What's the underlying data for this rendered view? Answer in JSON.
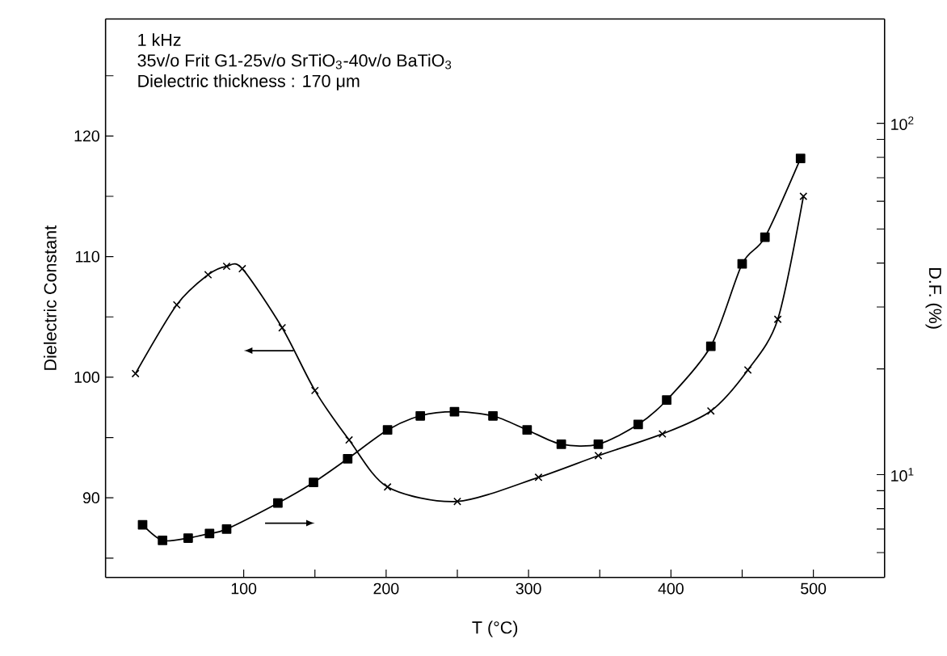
{
  "chart_data": {
    "type": "line",
    "xlabel": "T (°C)",
    "ylabel": "Dielectric Constant",
    "y2label": "D.F. (%)",
    "annotations": [
      "1 kHz",
      "35v/o Frit G1-25v/o SrTiO$_{3}$-40v/o BaTiO$_{3}$",
      "Dielectric thickness : 170 μm"
    ],
    "xlim": [
      3,
      550
    ],
    "xticks": [
      100,
      {
        "value": 150,
        "label": null
      },
      200,
      {
        "value": 250,
        "label": null
      },
      300,
      {
        "value": 350,
        "label": null
      },
      400,
      {
        "value": 450,
        "label": null
      },
      500
    ],
    "ylim": [
      83.4,
      129.7
    ],
    "yticks": [
      {
        "value": 85,
        "label": null
      },
      90,
      {
        "value": 95,
        "label": null
      },
      100,
      {
        "value": 105,
        "label": null
      },
      110,
      {
        "value": 115,
        "label": null
      },
      120,
      {
        "value": 125,
        "label": null
      }
    ],
    "y2lim": [
      5.1,
      198
    ],
    "y2ticks": [
      {
        "value": 6,
        "label": null
      },
      {
        "value": 7,
        "label": null
      },
      {
        "value": 8,
        "label": null
      },
      {
        "value": 9,
        "label": null
      },
      {
        "value": 10,
        "label": "10$^{1}$"
      },
      {
        "value": 20,
        "label": null
      },
      {
        "value": 30,
        "label": null
      },
      {
        "value": 40,
        "label": null
      },
      {
        "value": 50,
        "label": null
      },
      {
        "value": 60,
        "label": null
      },
      {
        "value": 70,
        "label": null
      },
      {
        "value": 80,
        "label": null
      },
      {
        "value": 90,
        "label": null
      },
      {
        "value": 100,
        "label": "10$^{2}$"
      }
    ],
    "log": "y2",
    "grid": false,
    "line_style": "solid",
    "series": [
      {
        "color": "#000000",
        "marker": "cross",
        "x": [
          24,
          53,
          75,
          88,
          99,
          127,
          150,
          174,
          201,
          250,
          307,
          349,
          394,
          428,
          454,
          475,
          493
        ],
        "values": [
          100.3,
          106.0,
          108.5,
          109.2,
          109.0,
          104.1,
          98.9,
          94.8,
          90.9,
          89.7,
          91.7,
          93.5,
          95.3,
          97.2,
          100.6,
          104.8,
          115.0
        ]
      },
      {
        "color": "#000000",
        "marker": "square",
        "axis": "y2",
        "x": [
          29,
          43,
          61,
          76,
          88,
          124,
          149,
          173,
          201,
          224,
          248,
          275,
          299,
          323,
          349,
          377,
          397,
          428,
          450,
          466,
          491
        ],
        "values": [
          7.2,
          6.5,
          6.6,
          6.8,
          7.0,
          8.3,
          9.5,
          11.1,
          13.4,
          14.7,
          15.1,
          14.7,
          13.4,
          12.2,
          12.2,
          13.9,
          16.3,
          23.2,
          39.8,
          47.4,
          79.4
        ]
      }
    ]
  }
}
